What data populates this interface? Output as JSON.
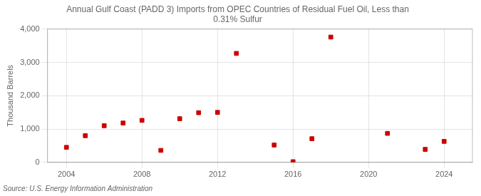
{
  "chart_data": {
    "type": "scatter",
    "title": "Annual Gulf Coast (PADD 3) Imports from OPEC Countries of Residual Fuel Oil, Less than\n0.31% Sulfur",
    "ylabel": "Thousand Barrels",
    "source": "Source: U.S. Energy Information Administration",
    "x": [
      2004,
      2005,
      2006,
      2007,
      2008,
      2009,
      2010,
      2011,
      2012,
      2013,
      2015,
      2016,
      2017,
      2018,
      2021,
      2023,
      2024
    ],
    "values": [
      450,
      800,
      1100,
      1180,
      1260,
      360,
      1310,
      1490,
      1500,
      3270,
      520,
      20,
      710,
      3760,
      870,
      390,
      630
    ],
    "color": "#cc0000",
    "marker": "square",
    "xlim": [
      2003.0,
      2025.5
    ],
    "xticks": [
      2004,
      2008,
      2012,
      2016,
      2020,
      2024
    ],
    "ylim": [
      0,
      4000
    ],
    "yticks": [
      0,
      {
        "value": 1000,
        "label": "1,000"
      },
      {
        "value": 2000,
        "label": "2,000"
      },
      {
        "value": 3000,
        "label": "3,000"
      },
      {
        "value": 4000,
        "label": "4,000"
      }
    ],
    "grid": true
  }
}
